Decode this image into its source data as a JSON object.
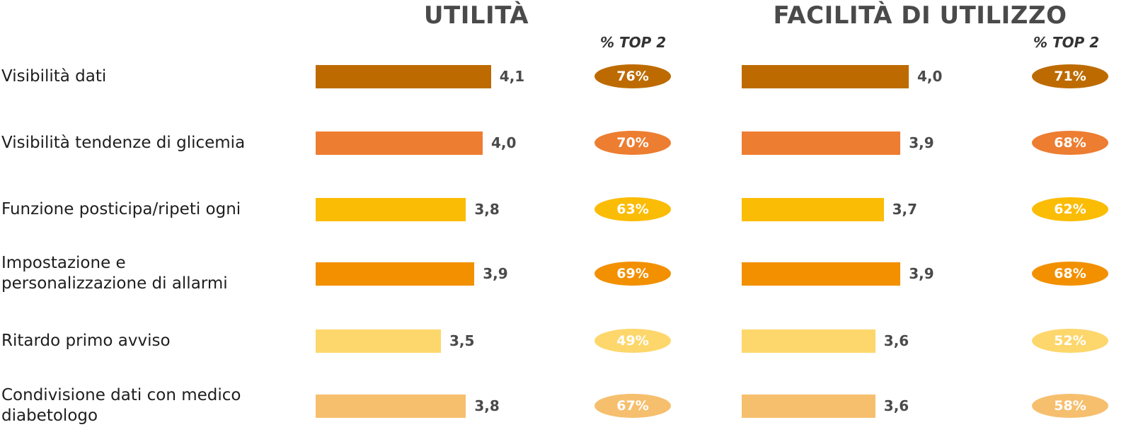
{
  "chart_data": {
    "type": "bar",
    "orientation": "horizontal",
    "categories": [
      "Visibilità dati",
      "Visibilità tendenze di glicemia",
      "Funzione posticipa/ripeti ogni",
      "Impostazione e personalizzazione di allarmi",
      "Ritardo primo avviso",
      "Condivisione dati con medico diabetologo"
    ],
    "category_label_lines": [
      [
        "Visibilità dati"
      ],
      [
        "Visibilità tendenze di glicemia"
      ],
      [
        "Funzione posticipa/ripeti ogni"
      ],
      [
        "Impostazione e",
        "personalizzazione di allarmi"
      ],
      [
        "Ritardo primo avviso"
      ],
      [
        "Condivisione dati con medico",
        "diabetologo"
      ]
    ],
    "series": [
      {
        "name": "UTILITÀ",
        "values": [
          4.1,
          4.0,
          3.8,
          3.9,
          3.5,
          3.8
        ],
        "value_labels": [
          "4,1",
          "4,0",
          "3,8",
          "3,9",
          "3,5",
          "3,8"
        ],
        "top2_percent": [
          76,
          70,
          63,
          69,
          49,
          67
        ],
        "top2_labels": [
          "76%",
          "70%",
          "63%",
          "69%",
          "49%",
          "67%"
        ]
      },
      {
        "name": "FACILITÀ DI UTILIZZO",
        "values": [
          4.0,
          3.9,
          3.7,
          3.9,
          3.6,
          3.6
        ],
        "value_labels": [
          "4,0",
          "3,9",
          "3,7",
          "3,9",
          "3,6",
          "3,6"
        ],
        "top2_percent": [
          71,
          68,
          62,
          68,
          52,
          58
        ],
        "top2_labels": [
          "71%",
          "68%",
          "62%",
          "68%",
          "52%",
          "58%"
        ]
      }
    ],
    "top2_header": "% TOP 2",
    "row_colors": [
      "#bd6b00",
      "#ed7d31",
      "#fbbc05",
      "#f29000",
      "#fdd76b",
      "#f6bf6e"
    ],
    "xlim": [
      2.0,
      4.2
    ],
    "grid": false
  }
}
